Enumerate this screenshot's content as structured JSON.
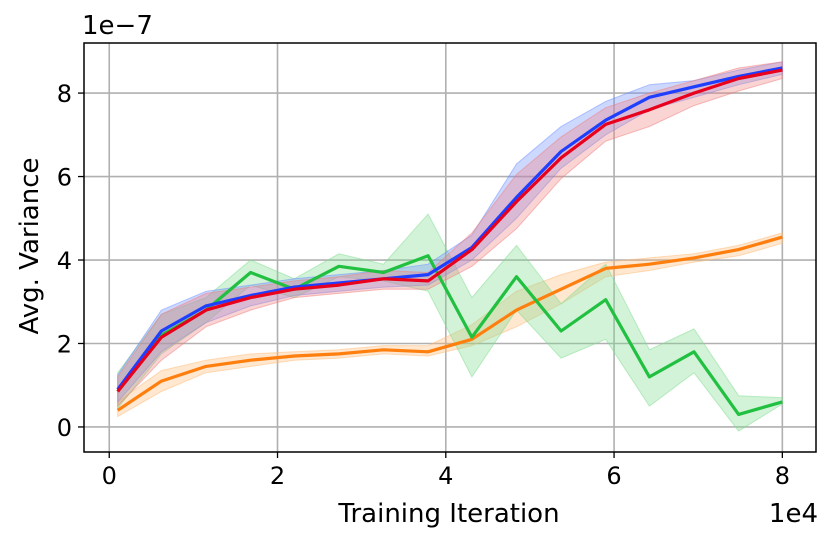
{
  "chart_data": {
    "type": "line",
    "xlabel": "Training Iteration",
    "ylabel": "Avg. Variance",
    "x_offset_label": "1e4",
    "y_offset_label": "1e−7",
    "xlim": [
      -0.3,
      8.4
    ],
    "ylim": [
      -0.6,
      9.2
    ],
    "x_ticks": [
      0,
      2,
      4,
      6,
      8
    ],
    "y_ticks": [
      0,
      2,
      4,
      6,
      8
    ],
    "grid": true,
    "x": [
      0.1,
      0.62,
      1.15,
      1.68,
      2.2,
      2.73,
      3.26,
      3.79,
      4.31,
      4.84,
      5.37,
      5.9,
      6.42,
      6.95,
      7.48,
      8.0
    ],
    "series": [
      {
        "color": "#1f3fff",
        "band_color": "#6f8fff",
        "values": [
          0.9,
          2.3,
          2.9,
          3.15,
          3.35,
          3.45,
          3.55,
          3.65,
          4.3,
          5.5,
          6.6,
          7.35,
          7.9,
          8.15,
          8.4,
          8.6
        ],
        "lower": [
          0.6,
          1.8,
          2.5,
          2.9,
          3.15,
          3.25,
          3.35,
          3.4,
          4.0,
          5.0,
          6.2,
          7.0,
          7.6,
          7.9,
          8.2,
          8.45
        ],
        "upper": [
          1.25,
          2.8,
          3.25,
          3.4,
          3.55,
          3.65,
          3.75,
          3.9,
          4.6,
          6.3,
          7.2,
          7.8,
          8.2,
          8.3,
          8.55,
          8.75
        ]
      },
      {
        "color": "#e8001c",
        "band_color": "#f08080",
        "values": [
          0.85,
          2.15,
          2.8,
          3.1,
          3.3,
          3.4,
          3.55,
          3.5,
          4.25,
          5.4,
          6.45,
          7.25,
          7.6,
          8.0,
          8.35,
          8.55
        ],
        "lower": [
          0.5,
          1.6,
          2.4,
          2.8,
          3.1,
          3.2,
          3.3,
          3.3,
          3.85,
          4.75,
          5.95,
          6.85,
          7.2,
          7.7,
          8.05,
          8.35
        ],
        "upper": [
          1.2,
          2.7,
          3.2,
          3.35,
          3.5,
          3.6,
          3.75,
          3.7,
          4.65,
          6.05,
          6.95,
          7.65,
          8.0,
          8.3,
          8.6,
          8.75
        ]
      },
      {
        "color": "#ff7f0e",
        "band_color": "#ffbb78",
        "values": [
          0.4,
          1.1,
          1.45,
          1.6,
          1.7,
          1.75,
          1.85,
          1.8,
          2.1,
          2.8,
          3.3,
          3.8,
          3.9,
          4.05,
          4.25,
          4.55
        ],
        "lower": [
          0.25,
          0.85,
          1.3,
          1.45,
          1.6,
          1.65,
          1.75,
          1.7,
          1.95,
          2.4,
          2.95,
          3.6,
          3.75,
          3.95,
          4.1,
          4.4
        ],
        "upper": [
          0.6,
          1.35,
          1.6,
          1.75,
          1.8,
          1.85,
          1.95,
          1.95,
          2.45,
          3.25,
          3.65,
          3.95,
          4.05,
          4.15,
          4.35,
          4.65
        ]
      },
      {
        "color": "#22c040",
        "band_color": "#7fdd8f",
        "values": [
          0.85,
          2.2,
          2.8,
          3.7,
          3.3,
          3.85,
          3.7,
          4.1,
          2.15,
          3.6,
          2.3,
          3.05,
          1.2,
          1.8,
          0.3,
          0.6
        ],
        "lower": [
          0.45,
          1.75,
          2.5,
          3.4,
          3.1,
          3.6,
          3.5,
          3.25,
          1.2,
          2.8,
          1.65,
          2.1,
          0.5,
          1.3,
          -0.1,
          0.55
        ],
        "upper": [
          1.3,
          2.7,
          3.1,
          4.0,
          3.55,
          4.15,
          3.9,
          5.1,
          3.1,
          4.35,
          2.95,
          3.9,
          1.85,
          2.35,
          0.75,
          0.7
        ]
      }
    ]
  }
}
